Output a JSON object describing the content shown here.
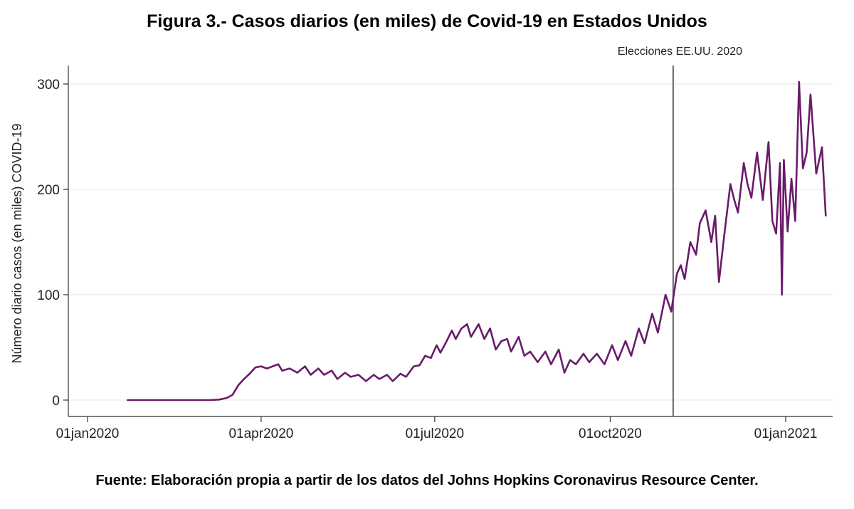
{
  "figure": {
    "title": "Figura 3.- Casos diarios (en miles) de Covid-19 en Estados Unidos",
    "source": "Fuente: Elaboración propia a partir de los datos del Johns Hopkins Coronavirus Resource Center."
  },
  "chart_data": {
    "type": "line",
    "title": "Figura 3.- Casos diarios (en miles) de Covid-19 en Estados Unidos",
    "xlabel": "",
    "ylabel": "Número diario casos (en miles) COVID-19",
    "xlim": [
      "2020-01-01",
      "2021-01-23"
    ],
    "ylim": [
      0,
      310
    ],
    "y_ticks": [
      0,
      100,
      200,
      300
    ],
    "x_ticks": [
      {
        "date": "2020-01-01",
        "label": "01jan2020"
      },
      {
        "date": "2020-04-01",
        "label": "01apr2020"
      },
      {
        "date": "2020-07-01",
        "label": "01jul2020"
      },
      {
        "date": "2020-10-01",
        "label": "01oct2020"
      },
      {
        "date": "2021-01-01",
        "label": "01jan2021"
      }
    ],
    "grid": {
      "horizontal": true,
      "vertical": false
    },
    "line_color": "#6a1b6a",
    "annotations": [
      {
        "type": "vline",
        "date": "2020-11-03",
        "label": "Elecciones EE.UU. 2020",
        "color": "#666666"
      }
    ],
    "series": [
      {
        "values": [
          [
            "2020-01-22",
            0
          ],
          [
            "2020-02-15",
            0
          ],
          [
            "2020-03-05",
            0
          ],
          [
            "2020-03-10",
            0.5
          ],
          [
            "2020-03-14",
            2
          ],
          [
            "2020-03-17",
            5
          ],
          [
            "2020-03-20",
            14
          ],
          [
            "2020-03-23",
            20
          ],
          [
            "2020-03-26",
            25
          ],
          [
            "2020-03-29",
            31
          ],
          [
            "2020-04-01",
            32
          ],
          [
            "2020-04-04",
            30
          ],
          [
            "2020-04-07",
            32
          ],
          [
            "2020-04-10",
            34
          ],
          [
            "2020-04-12",
            28
          ],
          [
            "2020-04-16",
            30
          ],
          [
            "2020-04-20",
            26
          ],
          [
            "2020-04-24",
            32
          ],
          [
            "2020-04-27",
            24
          ],
          [
            "2020-05-01",
            30
          ],
          [
            "2020-05-04",
            24
          ],
          [
            "2020-05-08",
            28
          ],
          [
            "2020-05-11",
            20
          ],
          [
            "2020-05-15",
            26
          ],
          [
            "2020-05-18",
            22
          ],
          [
            "2020-05-22",
            24
          ],
          [
            "2020-05-26",
            18
          ],
          [
            "2020-05-30",
            24
          ],
          [
            "2020-06-02",
            20
          ],
          [
            "2020-06-06",
            24
          ],
          [
            "2020-06-09",
            18
          ],
          [
            "2020-06-13",
            25
          ],
          [
            "2020-06-16",
            22
          ],
          [
            "2020-06-20",
            32
          ],
          [
            "2020-06-23",
            33
          ],
          [
            "2020-06-26",
            42
          ],
          [
            "2020-06-29",
            40
          ],
          [
            "2020-07-02",
            52
          ],
          [
            "2020-07-04",
            45
          ],
          [
            "2020-07-07",
            55
          ],
          [
            "2020-07-10",
            66
          ],
          [
            "2020-07-12",
            58
          ],
          [
            "2020-07-15",
            68
          ],
          [
            "2020-07-18",
            72
          ],
          [
            "2020-07-20",
            60
          ],
          [
            "2020-07-24",
            72
          ],
          [
            "2020-07-27",
            58
          ],
          [
            "2020-07-30",
            68
          ],
          [
            "2020-08-02",
            48
          ],
          [
            "2020-08-05",
            56
          ],
          [
            "2020-08-08",
            58
          ],
          [
            "2020-08-10",
            46
          ],
          [
            "2020-08-14",
            60
          ],
          [
            "2020-08-17",
            42
          ],
          [
            "2020-08-20",
            46
          ],
          [
            "2020-08-24",
            36
          ],
          [
            "2020-08-28",
            46
          ],
          [
            "2020-08-31",
            34
          ],
          [
            "2020-09-04",
            48
          ],
          [
            "2020-09-07",
            26
          ],
          [
            "2020-09-10",
            38
          ],
          [
            "2020-09-13",
            34
          ],
          [
            "2020-09-17",
            44
          ],
          [
            "2020-09-20",
            36
          ],
          [
            "2020-09-24",
            44
          ],
          [
            "2020-09-28",
            34
          ],
          [
            "2020-10-02",
            52
          ],
          [
            "2020-10-05",
            38
          ],
          [
            "2020-10-09",
            56
          ],
          [
            "2020-10-12",
            42
          ],
          [
            "2020-10-16",
            68
          ],
          [
            "2020-10-19",
            54
          ],
          [
            "2020-10-23",
            82
          ],
          [
            "2020-10-26",
            64
          ],
          [
            "2020-10-30",
            100
          ],
          [
            "2020-11-02",
            84
          ],
          [
            "2020-11-05",
            120
          ],
          [
            "2020-11-07",
            128
          ],
          [
            "2020-11-09",
            115
          ],
          [
            "2020-11-12",
            150
          ],
          [
            "2020-11-15",
            138
          ],
          [
            "2020-11-17",
            168
          ],
          [
            "2020-11-20",
            180
          ],
          [
            "2020-11-23",
            150
          ],
          [
            "2020-11-25",
            175
          ],
          [
            "2020-11-27",
            112
          ],
          [
            "2020-11-30",
            160
          ],
          [
            "2020-12-03",
            205
          ],
          [
            "2020-12-05",
            190
          ],
          [
            "2020-12-07",
            178
          ],
          [
            "2020-12-10",
            225
          ],
          [
            "2020-12-12",
            205
          ],
          [
            "2020-12-14",
            192
          ],
          [
            "2020-12-17",
            235
          ],
          [
            "2020-12-20",
            190
          ],
          [
            "2020-12-23",
            245
          ],
          [
            "2020-12-25",
            170
          ],
          [
            "2020-12-27",
            158
          ],
          [
            "2020-12-29",
            225
          ],
          [
            "2020-12-30",
            100
          ],
          [
            "2020-12-31",
            228
          ],
          [
            "2021-01-02",
            160
          ],
          [
            "2021-01-04",
            210
          ],
          [
            "2021-01-06",
            170
          ],
          [
            "2021-01-08",
            302
          ],
          [
            "2021-01-10",
            220
          ],
          [
            "2021-01-12",
            235
          ],
          [
            "2021-01-14",
            290
          ],
          [
            "2021-01-17",
            215
          ],
          [
            "2021-01-20",
            240
          ],
          [
            "2021-01-22",
            175
          ]
        ]
      }
    ]
  }
}
